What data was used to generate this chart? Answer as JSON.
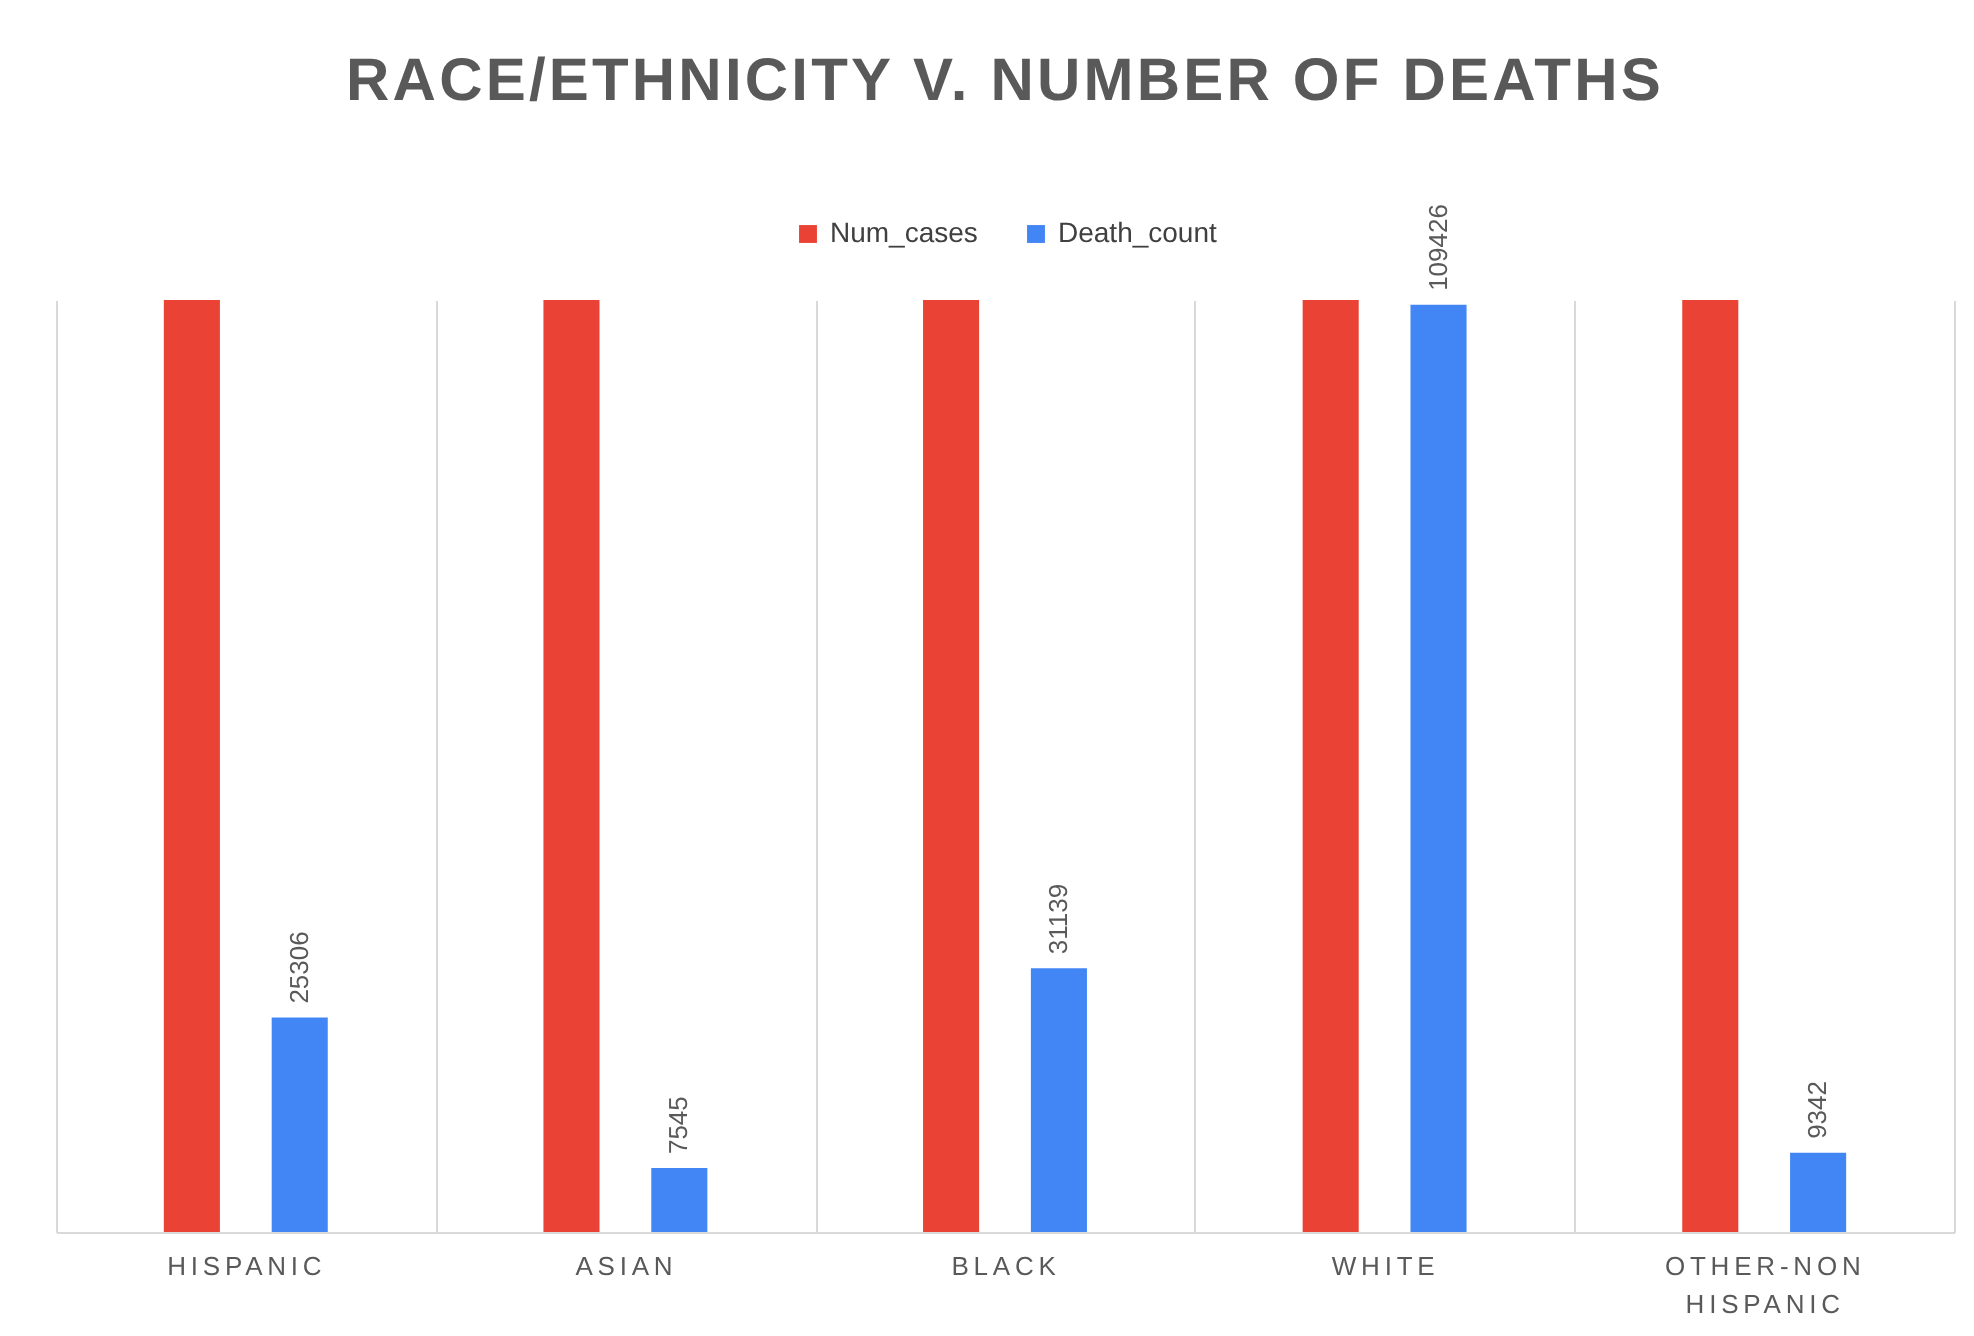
{
  "chart_data": {
    "type": "bar",
    "title": "RACE/ETHNICITY V. NUMBER OF DEATHS",
    "categories": [
      "HISPANIC",
      "ASIAN",
      "BLACK",
      "WHITE",
      "OTHER-NON HISPANIC"
    ],
    "series": [
      {
        "name": "Num_cases",
        "color": "#ea4335",
        "values": [
          110000,
          110000,
          110000,
          110000,
          110000
        ]
      },
      {
        "name": "Death_count",
        "color": "#4285f4",
        "values": [
          25306,
          7545,
          31139,
          109426,
          9342
        ],
        "value_labels": [
          "25306",
          "7545",
          "31139",
          "109426",
          "9342"
        ]
      }
    ],
    "ylim": [
      0,
      110000
    ],
    "grid": "x",
    "legend": "top",
    "tick_labels": "x"
  }
}
